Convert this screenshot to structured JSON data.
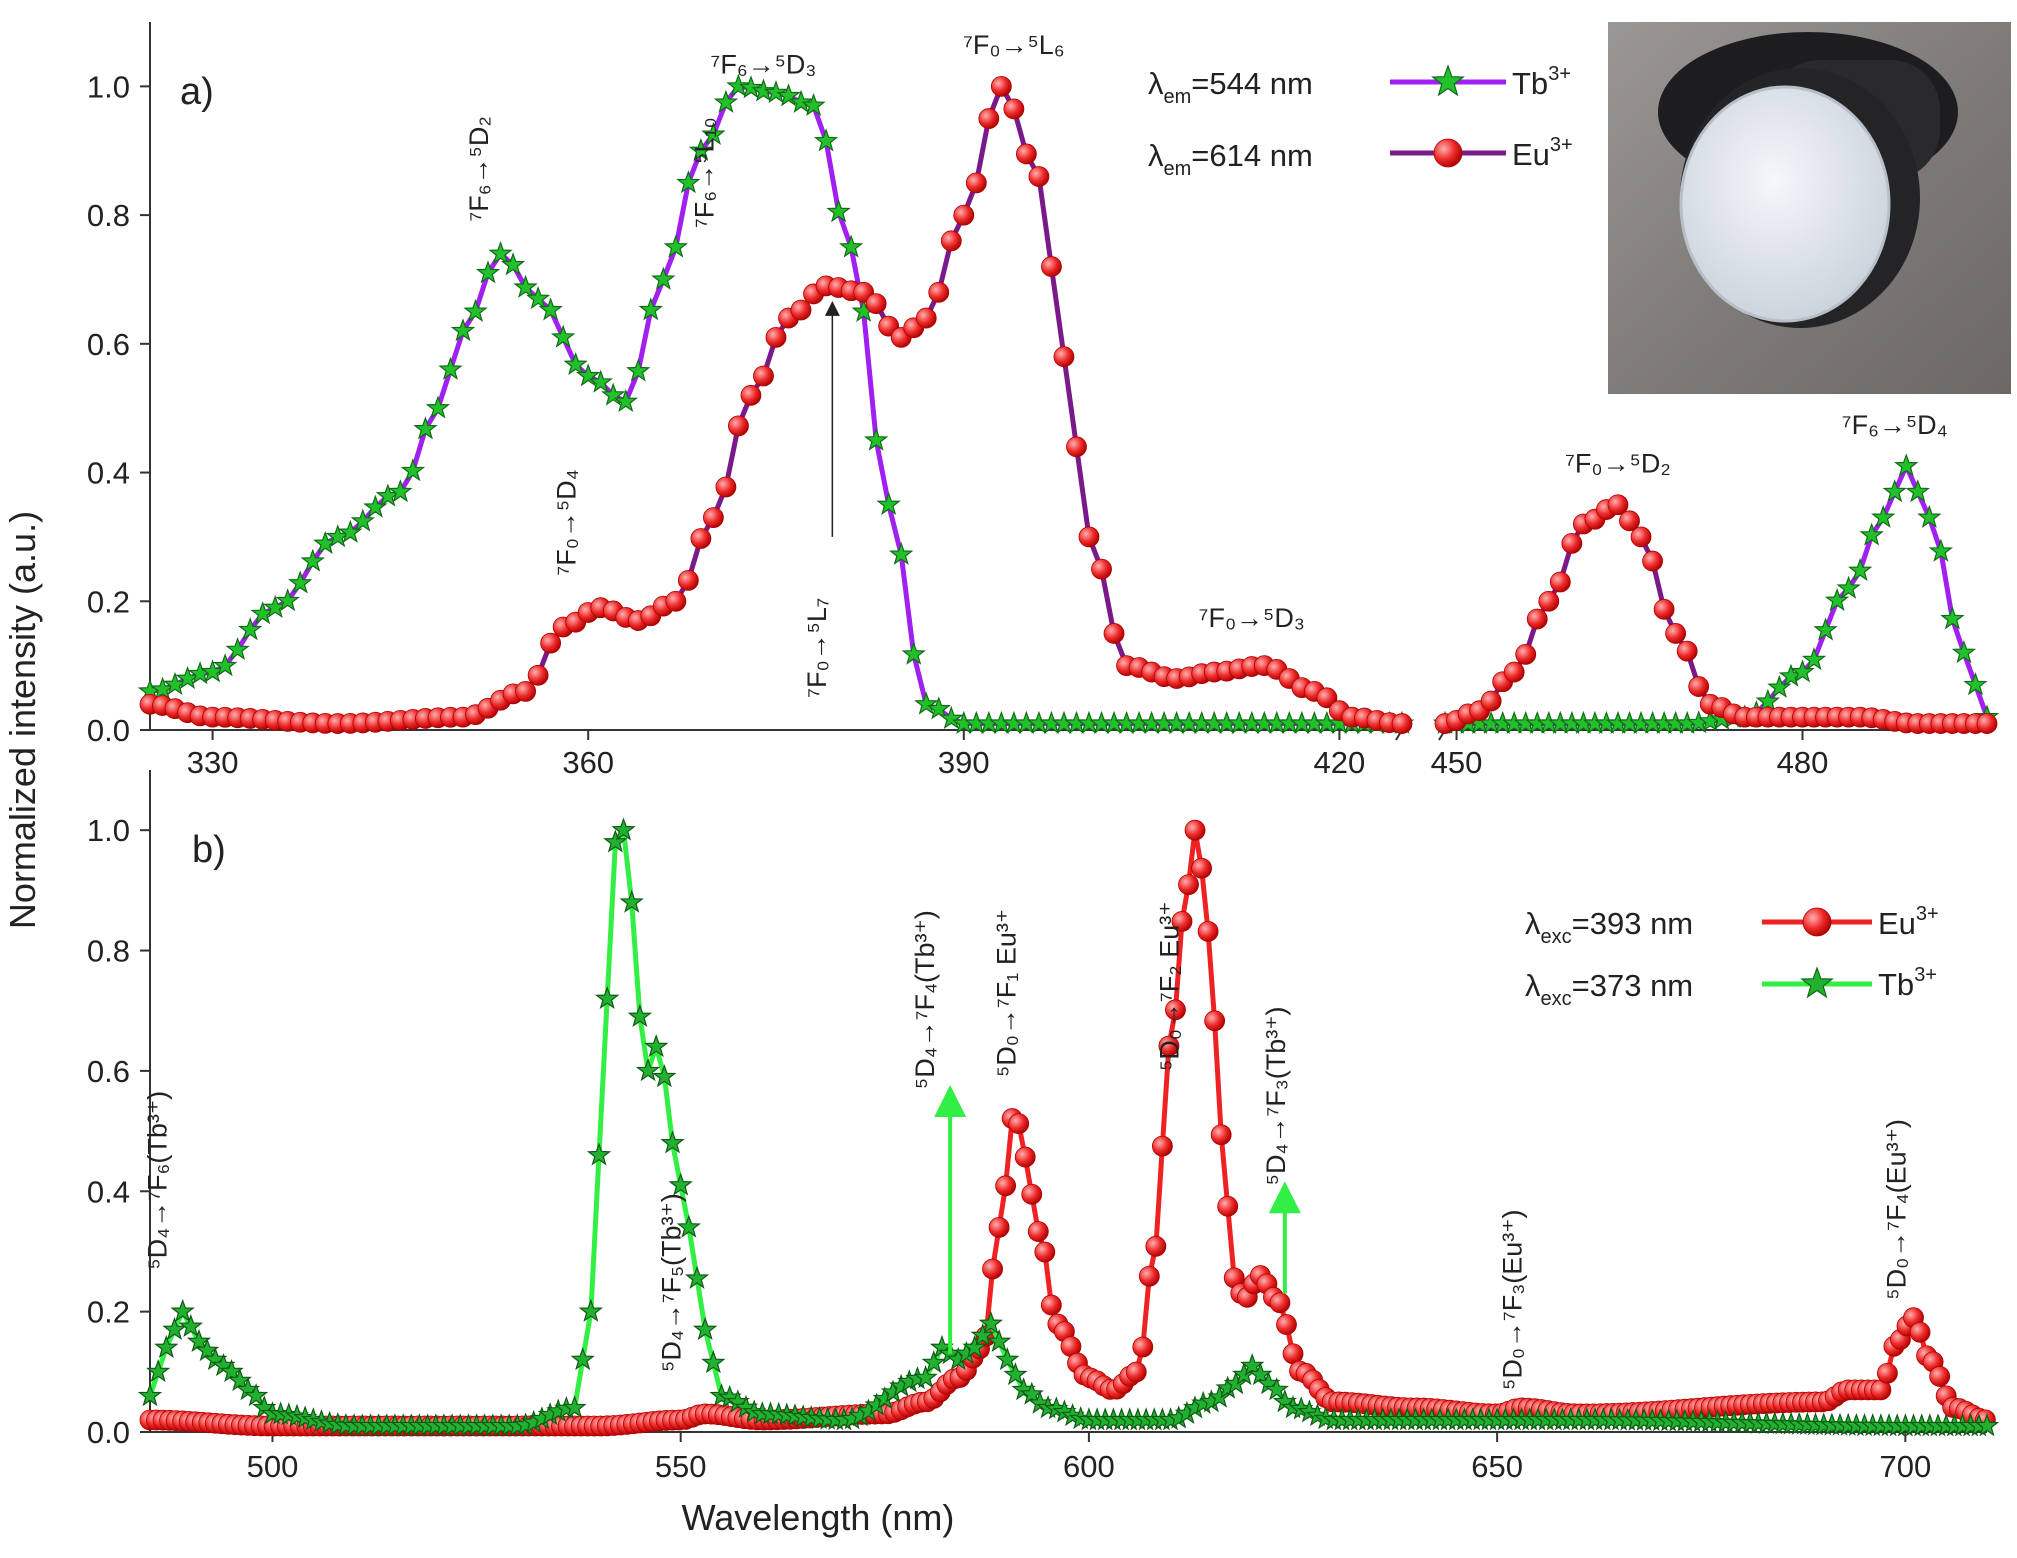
{
  "figure": {
    "ylabel": "Normalized intensity (a.u.)",
    "xlabel": "Wavelength (nm)",
    "photo_description": "photo-inset"
  },
  "chart_data": [
    {
      "panel": "a)",
      "type": "line",
      "title": "",
      "xlabel": "",
      "ylabel": "Normalized intensity (a.u.)",
      "xlim_segments": [
        [
          325,
          425
        ],
        [
          449,
          496
        ]
      ],
      "ylim": [
        0,
        1.1
      ],
      "xticks": [
        330,
        360,
        390,
        420,
        450,
        480
      ],
      "yticks": [
        0.0,
        0.2,
        0.4,
        0.6,
        0.8,
        1.0
      ],
      "ytick_labels": [
        "0.0",
        "0.2",
        "0.4",
        "0.6",
        "0.8",
        "1.0"
      ],
      "legend": {
        "placement": "top-center-right",
        "entries": [
          {
            "prefix": "λ",
            "sub": "em",
            "text": "=544  nm",
            "ion": "Tb",
            "sup": "3+",
            "series": "Tb"
          },
          {
            "prefix": "λ",
            "sub": "em",
            "text": "=614  nm",
            "ion": "Eu",
            "sup": "3+",
            "series": "Eu"
          }
        ]
      },
      "series": [
        {
          "name": "Tb3+",
          "marker": "star",
          "line_color": "#a020f0",
          "marker_color": "#22c02a",
          "x": [
            325,
            330,
            335,
            340,
            345,
            348,
            350,
            353,
            356,
            360,
            363,
            366,
            369,
            372,
            375,
            378,
            381,
            384,
            387,
            390,
            395,
            400,
            410,
            420,
            425,
            449,
            455,
            460,
            465,
            470,
            475,
            480,
            484,
            487,
            489,
            491,
            494,
            496
          ],
          "y": [
            0.06,
            0.09,
            0.19,
            0.3,
            0.37,
            0.5,
            0.62,
            0.74,
            0.67,
            0.55,
            0.51,
            0.7,
            0.9,
            1.0,
            0.99,
            0.97,
            0.75,
            0.35,
            0.04,
            0.01,
            0.01,
            0.01,
            0.01,
            0.01,
            0.01,
            0.01,
            0.01,
            0.01,
            0.01,
            0.01,
            0.02,
            0.09,
            0.22,
            0.33,
            0.41,
            0.33,
            0.12,
            0.02
          ]
        },
        {
          "name": "Eu3+",
          "marker": "circle",
          "line_color": "#7a1a8a",
          "marker_color": "#ee2222",
          "x": [
            325,
            330,
            340,
            350,
            355,
            358,
            361,
            364,
            367,
            370,
            373,
            376,
            379,
            382,
            385,
            387,
            390,
            393,
            396,
            398,
            400,
            403,
            407,
            410,
            414,
            418,
            421,
            425,
            449,
            452,
            455,
            458,
            461,
            464,
            466,
            469,
            472,
            475,
            480,
            485,
            490,
            496
          ],
          "y": [
            0.04,
            0.02,
            0.01,
            0.02,
            0.06,
            0.16,
            0.19,
            0.17,
            0.2,
            0.33,
            0.52,
            0.64,
            0.69,
            0.68,
            0.61,
            0.64,
            0.8,
            1.0,
            0.86,
            0.58,
            0.3,
            0.1,
            0.08,
            0.09,
            0.1,
            0.06,
            0.02,
            0.01,
            0.01,
            0.03,
            0.09,
            0.2,
            0.32,
            0.35,
            0.3,
            0.15,
            0.04,
            0.02,
            0.02,
            0.02,
            0.01,
            0.01
          ]
        }
      ],
      "annotations": [
        {
          "from": "7",
          "fsub": "F",
          "fsubidx": "6",
          "to": "5",
          "tsub": "D",
          "tsubidx": "2",
          "text": "⁷F₆→⁵D₂",
          "x": 352,
          "y": 0.79,
          "rot": -90
        },
        {
          "text": "⁷F₆→⁵L₁₀",
          "x": 370,
          "y": 0.78,
          "rot": -90
        },
        {
          "text": "⁷F₆→⁵D₃",
          "x": 374,
          "y": 1.02,
          "rot": 0
        },
        {
          "text": "⁷F₀→⁵L₆",
          "x": 394,
          "y": 1.05,
          "rot": 0
        },
        {
          "text": "⁷F₀→⁵D₄",
          "x": 359,
          "y": 0.24,
          "rot": -90
        },
        {
          "text": "⁷F₀→⁵L₇",
          "x": 379,
          "y": 0.05,
          "rot": -90
        },
        {
          "text": "⁷F₀→⁵D₃",
          "x": 413,
          "y": 0.16,
          "rot": 0
        },
        {
          "text": "⁷F₀→⁵D₂",
          "x": 464,
          "y": 0.4,
          "rot": 0
        },
        {
          "text": "⁷F₆→⁵D₄",
          "x": 488,
          "y": 0.46,
          "rot": 0
        }
      ]
    },
    {
      "panel": "b)",
      "type": "line",
      "title": "",
      "xlabel": "Wavelength (nm)",
      "ylabel": "Normalized intensity (a.u.)",
      "xlim": [
        485,
        710
      ],
      "ylim": [
        0,
        1.1
      ],
      "xticks": [
        500,
        550,
        600,
        650,
        700
      ],
      "yticks": [
        0.0,
        0.2,
        0.4,
        0.6,
        0.8,
        1.0
      ],
      "ytick_labels": [
        "0.0",
        "0.2",
        "0.4",
        "0.6",
        "0.8",
        "1.0"
      ],
      "legend": {
        "placement": "right",
        "entries": [
          {
            "prefix": "λ",
            "sub": "exc",
            "text": "=393  nm",
            "ion": "Eu",
            "sup": "3+",
            "series": "Eu"
          },
          {
            "prefix": "λ",
            "sub": "exc",
            "text": "=373  nm",
            "ion": "Tb",
            "sup": "3+",
            "series": "Tb"
          }
        ]
      },
      "series": [
        {
          "name": "Eu3+",
          "marker": "circle",
          "line_color": "#ee2222",
          "marker_color": "#ee2222",
          "x": [
            485,
            500,
            540,
            550,
            553,
            560,
            575,
            580,
            584,
            587,
            589,
            591,
            592,
            594,
            596,
            600,
            603,
            606,
            608,
            610,
            612,
            613,
            614,
            615,
            616,
            618,
            619,
            621,
            623,
            626,
            630,
            640,
            650,
            653,
            660,
            690,
            693,
            697,
            699,
            701,
            703,
            706,
            710
          ],
          "y": [
            0.02,
            0.01,
            0.01,
            0.02,
            0.03,
            0.02,
            0.03,
            0.05,
            0.09,
            0.14,
            0.34,
            0.54,
            0.46,
            0.33,
            0.18,
            0.09,
            0.07,
            0.1,
            0.3,
            0.65,
            0.9,
            1.0,
            0.93,
            0.78,
            0.5,
            0.25,
            0.22,
            0.26,
            0.22,
            0.1,
            0.05,
            0.04,
            0.03,
            0.04,
            0.03,
            0.05,
            0.07,
            0.07,
            0.15,
            0.19,
            0.12,
            0.04,
            0.02
          ]
        },
        {
          "name": "Tb3+",
          "marker": "star",
          "line_color": "#33ee44",
          "marker_color": "#22b030",
          "x": [
            485,
            487,
            489,
            491,
            493,
            495,
            497,
            500,
            510,
            520,
            530,
            537,
            539,
            541,
            542,
            543,
            544,
            545,
            546,
            547,
            548,
            549,
            551,
            553,
            555,
            560,
            570,
            580,
            582,
            584,
            586,
            588,
            590,
            592,
            595,
            600,
            610,
            615,
            618,
            620,
            622,
            625,
            630,
            650,
            660,
            700,
            710
          ],
          "y": [
            0.06,
            0.14,
            0.2,
            0.15,
            0.12,
            0.1,
            0.07,
            0.03,
            0.01,
            0.01,
            0.01,
            0.04,
            0.2,
            0.72,
            0.98,
            1.0,
            0.88,
            0.69,
            0.6,
            0.64,
            0.59,
            0.48,
            0.34,
            0.17,
            0.06,
            0.03,
            0.02,
            0.09,
            0.14,
            0.12,
            0.14,
            0.18,
            0.12,
            0.07,
            0.04,
            0.02,
            0.02,
            0.05,
            0.08,
            0.11,
            0.08,
            0.04,
            0.02,
            0.02,
            0.02,
            0.01,
            0.01
          ]
        }
      ],
      "arrows": [
        {
          "x": 583,
          "y_from": 0.13,
          "y_to": 0.55,
          "color": "#33ee44"
        },
        {
          "x": 624,
          "y_from": 0.23,
          "y_to": 0.39,
          "color": "#33ee44"
        }
      ],
      "annotations": [
        {
          "text": "⁵D₄→⁷F₆(Tb³⁺)",
          "x": 487,
          "y": 0.27,
          "rot": -90
        },
        {
          "text": "⁵D₄→⁷F₅(Tb³⁺)",
          "x": 550,
          "y": 0.1,
          "rot": -90
        },
        {
          "text": "⁵D₄→⁷F₄(Tb³⁺)",
          "x": 581,
          "y": 0.57,
          "rot": -90
        },
        {
          "text": "⁵D₀→⁷F₁ Eu³⁺",
          "x": 591,
          "y": 0.59,
          "rot": -90
        },
        {
          "text": "⁵D₀→⁷F₂ Eu³⁺",
          "x": 611,
          "y": 0.6,
          "rot": -90
        },
        {
          "text": "⁵D₄→⁷F₃(Tb³⁺)",
          "x": 624,
          "y": 0.41,
          "rot": -90
        },
        {
          "text": "⁵D₀→⁷F₃(Eu³⁺)",
          "x": 653,
          "y": 0.07,
          "rot": -90
        },
        {
          "text": "⁵D₀→⁷F₄(Eu³⁺)",
          "x": 700,
          "y": 0.22,
          "rot": -90
        }
      ]
    }
  ]
}
